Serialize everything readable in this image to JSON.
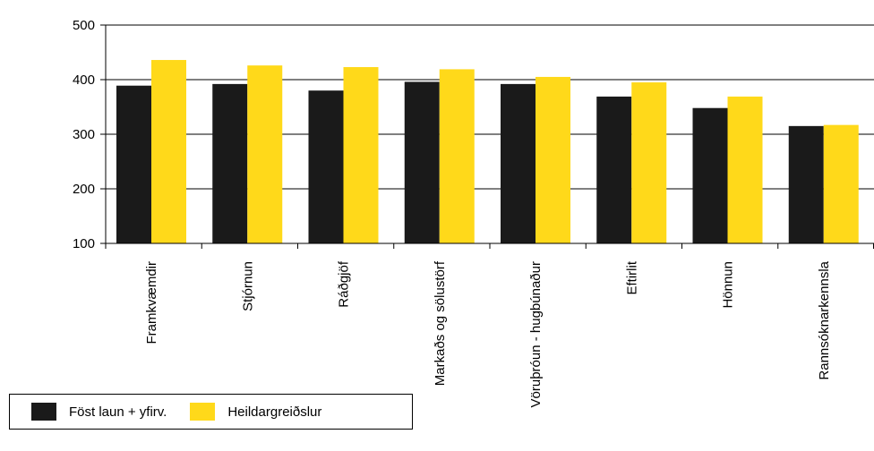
{
  "chart_data": {
    "type": "bar",
    "categories": [
      "Framkvæmdir",
      "Stjórnun",
      "Ráðgjöf",
      "Markaðs og sölustörf",
      "Vöruþróun - hugbúnaður",
      "Eftirlit",
      "Hönnun",
      "Rannsóknarkennsla"
    ],
    "series": [
      {
        "name": "Föst laun + yfirv.",
        "color": "#1a1a1a",
        "values": [
          389,
          392,
          380,
          396,
          392,
          369,
          348,
          315
        ]
      },
      {
        "name": "Heildargreiðslur",
        "color": "#ffd91a",
        "values": [
          436,
          426,
          423,
          419,
          405,
          395,
          369,
          317
        ]
      }
    ],
    "yticks": [
      100,
      200,
      300,
      400,
      500
    ],
    "ylim": [
      100,
      500
    ],
    "title": "",
    "xlabel": "",
    "ylabel": "",
    "grid": "horizontal",
    "legend_position": "bottom-left"
  }
}
